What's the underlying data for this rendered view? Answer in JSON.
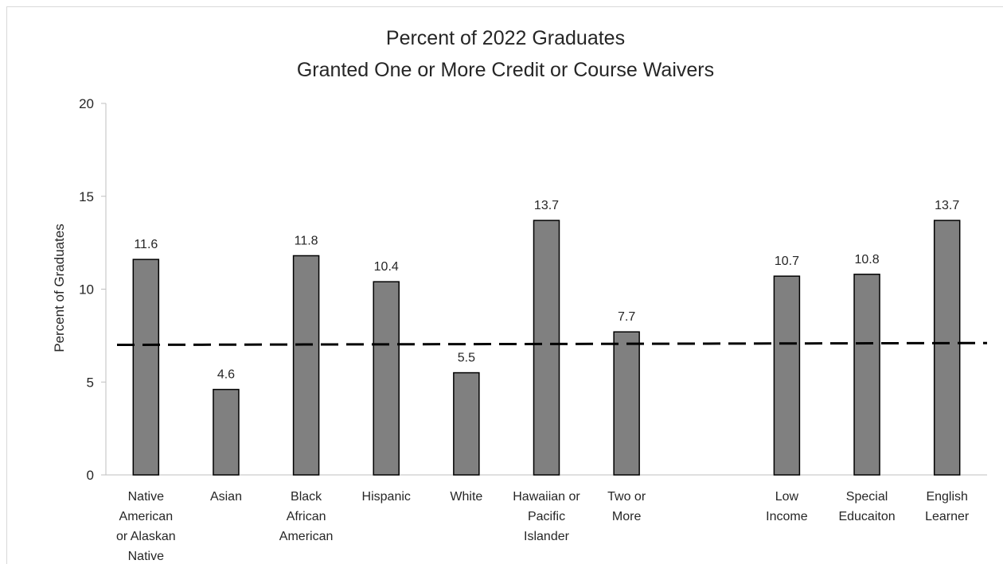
{
  "chart_data": {
    "type": "bar",
    "title_lines": [
      "Percent of 2022 Graduates",
      "Granted One or More Credit or Course Waivers"
    ],
    "xlabel": "",
    "ylabel": "Percent of Graduates",
    "ylim": [
      0,
      20
    ],
    "yticks": [
      0,
      5,
      10,
      15,
      20
    ],
    "grid": false,
    "legend": "none",
    "bar_color": "#808080",
    "bar_edge_color": "#000000",
    "reference_line": {
      "style": "dashed",
      "values": [
        7.0,
        7.1
      ]
    },
    "categories": [
      {
        "lines": [
          "Native",
          "American",
          "or Alaskan",
          "Native"
        ],
        "value": 11.6,
        "label": "11.6"
      },
      {
        "lines": [
          "Asian"
        ],
        "value": 4.6,
        "label": "4.6"
      },
      {
        "lines": [
          "Black",
          "African",
          "American"
        ],
        "value": 11.8,
        "label": "11.8"
      },
      {
        "lines": [
          "Hispanic"
        ],
        "value": 10.4,
        "label": "10.4"
      },
      {
        "lines": [
          "White"
        ],
        "value": 5.5,
        "label": "5.5"
      },
      {
        "lines": [
          "Hawaiian or",
          "Pacific",
          "Islander"
        ],
        "value": 13.7,
        "label": "13.7"
      },
      {
        "lines": [
          "Two or",
          "More"
        ],
        "value": 7.7,
        "label": "7.7"
      },
      {
        "lines": [
          ""
        ],
        "value": null,
        "label": ""
      },
      {
        "lines": [
          "Low",
          "Income"
        ],
        "value": 10.7,
        "label": "10.7"
      },
      {
        "lines": [
          "Special",
          "Educaiton"
        ],
        "value": 10.8,
        "label": "10.8"
      },
      {
        "lines": [
          "English",
          "Learner"
        ],
        "value": 13.7,
        "label": "13.7"
      }
    ]
  }
}
